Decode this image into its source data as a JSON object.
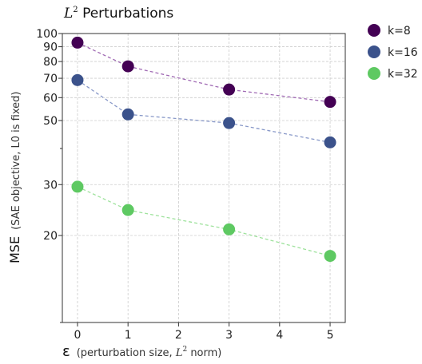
{
  "chart_data": {
    "type": "line",
    "title": "L² Perturbations",
    "title_math": "L",
    "title_sup": "2",
    "title_rest": " Perturbations",
    "xlabel_main": "ε",
    "xlabel_sub_a": "(perturbation size, ",
    "xlabel_sub_math": "L",
    "xlabel_sub_sup": "2",
    "xlabel_sub_b": " norm)",
    "ylabel_main": "MSE",
    "ylabel_sub": "(SAE objective, L0 is fixed)",
    "xlim": [
      -0.3,
      5.3
    ],
    "ylim": [
      10,
      100
    ],
    "yscale": "log",
    "xticks": [
      0,
      1,
      2,
      3,
      4,
      5
    ],
    "yticks": [
      20,
      30,
      50,
      60,
      70,
      80,
      90,
      100
    ],
    "grid": true,
    "legend_position": "outside-top-right",
    "series": [
      {
        "name": "k=8",
        "color": "#440154",
        "line_color": "#a06ab4",
        "x": [
          0,
          1,
          3,
          5
        ],
        "y": [
          93,
          77,
          64,
          58
        ]
      },
      {
        "name": "k=16",
        "color": "#3b528b",
        "line_color": "#8898c8",
        "x": [
          0,
          1,
          3,
          5
        ],
        "y": [
          69,
          52.5,
          49,
          42
        ]
      },
      {
        "name": "k=32",
        "color": "#5ec962",
        "line_color": "#9ee29c",
        "x": [
          0,
          1,
          3,
          5
        ],
        "y": [
          29.5,
          24.5,
          21,
          17
        ]
      }
    ]
  }
}
